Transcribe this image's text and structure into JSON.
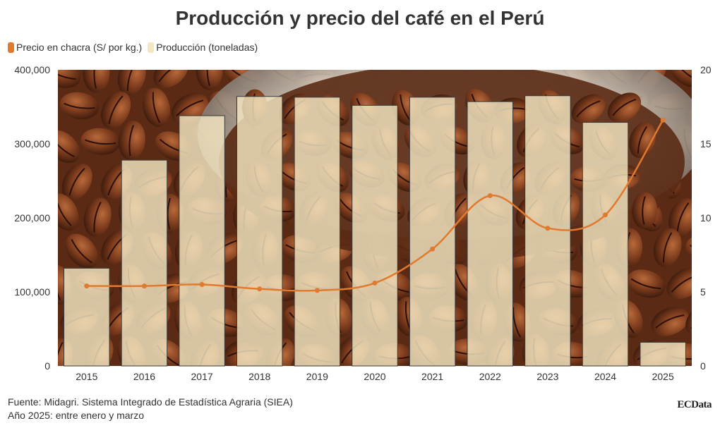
{
  "title": "Producción y precio del café en el Perú",
  "legend": {
    "price_label": "Precio en chacra (S/ por kg.)",
    "production_label": "Producción (toneladas)"
  },
  "colors": {
    "price_line": "#e07a2e",
    "production_bar": "#f3e7c2",
    "bar_stroke": "#3a3a3a",
    "text": "#333333"
  },
  "background_image": "coffee-beans-photo",
  "footer": {
    "source": "Fuente: Midagri. Sistema Integrado de Estadística Agraria (SIEA)",
    "note": "Año 2025: entre enero y marzo"
  },
  "brand": "ECData",
  "chart_data": {
    "type": "bar",
    "categories": [
      "2015",
      "2016",
      "2017",
      "2018",
      "2019",
      "2020",
      "2021",
      "2022",
      "2023",
      "2024",
      "2025"
    ],
    "series": [
      {
        "name": "Producción (toneladas)",
        "type": "bar",
        "axis": "left",
        "values": [
          132000,
          278000,
          338000,
          364000,
          363000,
          352000,
          363000,
          357000,
          365000,
          329000,
          32000
        ]
      },
      {
        "name": "Precio en chacra (S/ por kg.)",
        "type": "line",
        "axis": "right",
        "values": [
          5.4,
          5.4,
          5.5,
          5.2,
          5.1,
          5.6,
          7.9,
          11.5,
          9.3,
          10.2,
          16.6
        ]
      }
    ],
    "ylim_left": [
      0,
      400000
    ],
    "yticks_left": [
      "0",
      "100,000",
      "200,000",
      "300,000",
      "400,000"
    ],
    "ylim_right": [
      0,
      20
    ],
    "yticks_right": [
      "0",
      "5",
      "10",
      "15",
      "20"
    ],
    "legend_position": "top-left",
    "grid": false
  }
}
